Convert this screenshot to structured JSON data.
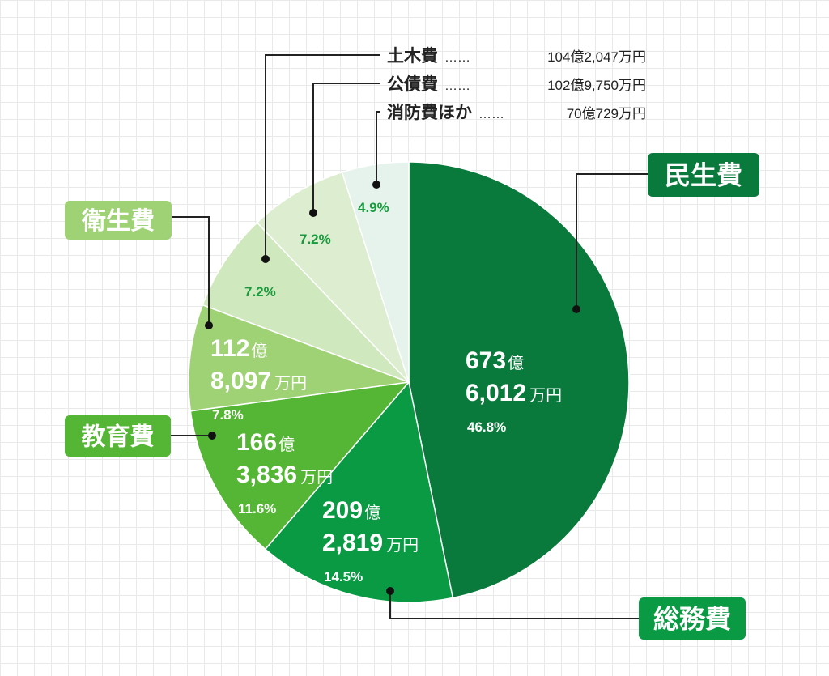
{
  "chart_data": {
    "type": "pie",
    "start_angle_deg": 0,
    "direction": "clockwise",
    "slices": [
      {
        "name": "民生費",
        "oku": "673",
        "man": "6,012",
        "percent": 46.8,
        "oku_unit": "億",
        "man_unit": "万円",
        "percent_label": "46.8%",
        "color": "#0a7a3c",
        "box_color": "#0a7a3c"
      },
      {
        "name": "総務費",
        "oku": "209",
        "man": "2,819",
        "percent": 14.5,
        "oku_unit": "億",
        "man_unit": "万円",
        "percent_label": "14.5%",
        "color": "#0a9a44",
        "box_color": "#0a9a44"
      },
      {
        "name": "教育費",
        "oku": "166",
        "man": "3,836",
        "percent": 11.6,
        "oku_unit": "億",
        "man_unit": "万円",
        "percent_label": "11.6%",
        "color": "#55b535",
        "box_color": "#55b535"
      },
      {
        "name": "衛生費",
        "oku": "112",
        "man": "8,097",
        "percent": 7.8,
        "oku_unit": "億",
        "man_unit": "万円",
        "percent_label": "7.8%",
        "color": "#9fd275",
        "box_color": "#9fd275"
      },
      {
        "name": "土木費",
        "amount": "104億2,047万円",
        "percent": 7.2,
        "percent_label": "7.2%",
        "color": "#d0e8bd"
      },
      {
        "name": "公債費",
        "amount": "102億9,750万円",
        "percent": 7.2,
        "percent_label": "7.2%",
        "color": "#dcedd0"
      },
      {
        "name": "消防費ほか",
        "amount": "70億729万円",
        "percent": 4.9,
        "percent_label": "4.9%",
        "color": "#e6f2ec"
      }
    ],
    "dots": "……"
  }
}
